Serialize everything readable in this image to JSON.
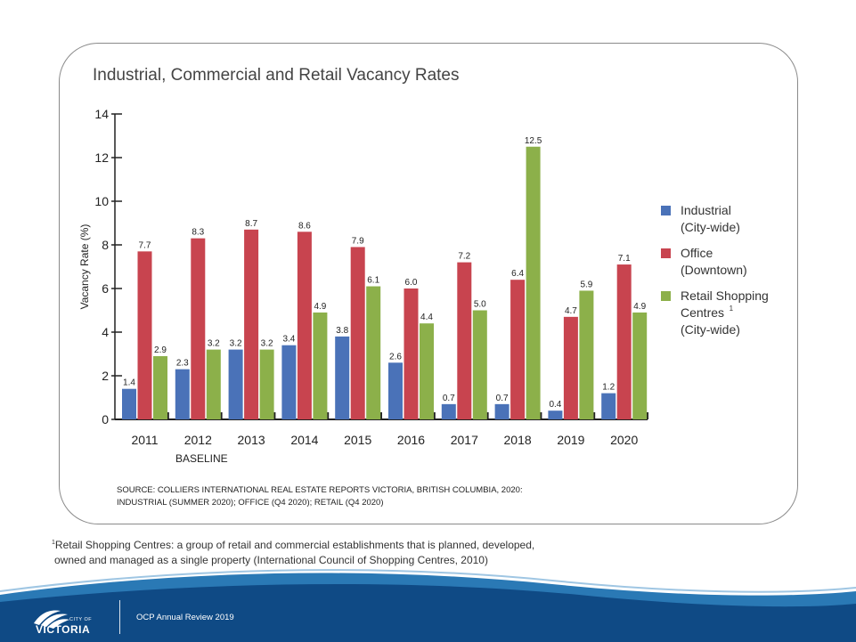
{
  "footnote": {
    "superscript": "1",
    "line1": "Retail Shopping Centres: a group of retail and commercial establishments that is planned, developed,",
    "line2": "owned and managed as a single property (International Council of Shopping Centres, 2010)"
  },
  "footer": {
    "title": "OCP Annual Review 2019",
    "logo_city": "CITY OF",
    "logo_name": "VICTORIA"
  },
  "colors": {
    "industrial": "#4a72b8",
    "office": "#c8444f",
    "retail": "#8cb04a",
    "wave_blue": "#1f6aa5",
    "wave_dark": "#0b3f73"
  },
  "chart_data": {
    "type": "bar",
    "title": "Industrial, Commercial and Retail Vacancy Rates",
    "ylabel": "Vacancy Rate (%)",
    "xlabel": "",
    "ylim": [
      0,
      14
    ],
    "yticks": [
      0,
      2,
      4,
      6,
      8,
      10,
      12,
      14
    ],
    "categories": [
      "2011",
      "2012",
      "2013",
      "2014",
      "2015",
      "2016",
      "2017",
      "2018",
      "2019",
      "2020"
    ],
    "category_sublabels": {
      "2012": "BASELINE"
    },
    "series": [
      {
        "key": "industrial",
        "legend_line1": "Industrial",
        "legend_line2": "(City-wide)",
        "legend_line3": "",
        "values": [
          1.4,
          2.3,
          3.2,
          3.4,
          3.8,
          2.6,
          0.7,
          0.7,
          0.4,
          1.2
        ],
        "labels": [
          "1.4",
          "2.3",
          "3.2",
          "3.4",
          "3.8",
          "2.6",
          "0.7",
          "0.7",
          "0.4",
          "1.2"
        ]
      },
      {
        "key": "office",
        "legend_line1": "Office",
        "legend_line2": "(Downtown)",
        "legend_line3": "",
        "values": [
          7.7,
          8.3,
          8.7,
          8.6,
          7.9,
          6.0,
          7.2,
          6.4,
          4.7,
          7.1
        ],
        "labels": [
          "7.7",
          "8.3",
          "8.7",
          "8.6",
          "7.9",
          "6.0",
          "7.2",
          "6.4",
          "4.7",
          "7.1"
        ]
      },
      {
        "key": "retail",
        "legend_line1": "Retail Shopping",
        "legend_line2": "Centres",
        "legend_sup": "1",
        "legend_line3": "(City-wide)",
        "values": [
          2.9,
          3.2,
          3.2,
          4.9,
          6.1,
          4.4,
          5.0,
          12.5,
          5.9,
          4.9
        ],
        "labels": [
          "2.9",
          "3.2",
          "3.2",
          "4.9",
          "6.1",
          "4.4",
          "5.0",
          "12.5",
          "5.9",
          "4.9"
        ]
      }
    ],
    "legend_position": "right",
    "grid": false,
    "source_line1": "SOURCE: COLLIERS INTERNATIONAL REAL ESTATE REPORTS VICTORIA, BRITISH COLUMBIA, 2020:",
    "source_line2": "INDUSTRIAL (SUMMER 2020); OFFICE (Q4 2020); RETAIL (Q4 2020)"
  }
}
